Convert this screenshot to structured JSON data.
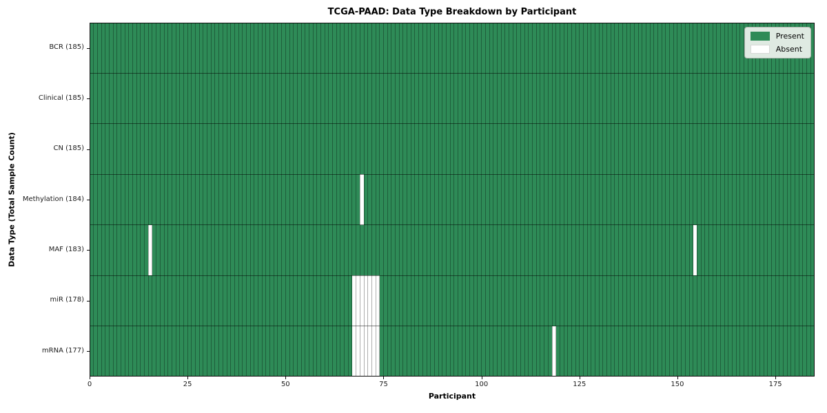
{
  "chart_data": {
    "type": "heatmap",
    "title": "TCGA-PAAD: Data Type Breakdown by Participant",
    "xlabel": "Participant",
    "ylabel": "Data Type (Total Sample Count)",
    "x_ticks": [
      0,
      25,
      50,
      75,
      100,
      125,
      150,
      175
    ],
    "x_range": [
      0,
      185
    ],
    "n_participants": 185,
    "grid": true,
    "colors": {
      "present": "#2e8b57",
      "absent": "#ffffff",
      "cell_grid": "rgba(0,0,0,0.32)",
      "row_divider": "rgba(0,0,0,0.5)"
    },
    "legend": {
      "position": "upper right",
      "entries": [
        {
          "label": "Present",
          "color": "#2e8b57"
        },
        {
          "label": "Absent",
          "color": "#ffffff"
        }
      ]
    },
    "rows": [
      {
        "label": "BCR (185)",
        "data_type": "BCR",
        "total_samples": 185,
        "absent_participants": []
      },
      {
        "label": "Clinical (185)",
        "data_type": "Clinical",
        "total_samples": 185,
        "absent_participants": []
      },
      {
        "label": "CN (185)",
        "data_type": "CN",
        "total_samples": 185,
        "absent_participants": []
      },
      {
        "label": "Methylation (184)",
        "data_type": "Methylation",
        "total_samples": 184,
        "absent_participants": [
          69
        ]
      },
      {
        "label": "MAF (183)",
        "data_type": "MAF",
        "total_samples": 183,
        "absent_participants": [
          15,
          154
        ]
      },
      {
        "label": "miR (178)",
        "data_type": "miR",
        "total_samples": 178,
        "absent_participants": [
          67,
          68,
          69,
          70,
          71,
          72,
          73
        ]
      },
      {
        "label": "mRNA (177)",
        "data_type": "mRNA",
        "total_samples": 177,
        "absent_participants": [
          67,
          68,
          69,
          70,
          71,
          72,
          73,
          118
        ]
      }
    ]
  }
}
